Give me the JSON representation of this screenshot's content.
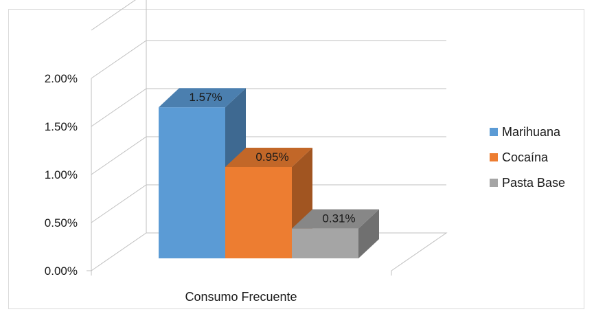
{
  "chart_data": {
    "type": "bar",
    "style": "3d-clustered-column",
    "categories": [
      "Consumo Frecuente"
    ],
    "series": [
      {
        "name": "Marihuana",
        "values": [
          1.57
        ],
        "label": "1.57%",
        "color": "#5b9bd5"
      },
      {
        "name": "Cocaína",
        "values": [
          0.95
        ],
        "label": "0.95%",
        "color": "#ed7d31"
      },
      {
        "name": "Pasta Base",
        "values": [
          0.31
        ],
        "label": "0.31%",
        "color": "#a5a5a5"
      }
    ],
    "yticks": [
      "0.00%",
      "0.50%",
      "1.00%",
      "1.50%",
      "2.00%"
    ],
    "ylim": [
      0,
      2
    ],
    "ylabel": "",
    "xlabel": "",
    "title": "",
    "grid": true,
    "legend": "right"
  }
}
